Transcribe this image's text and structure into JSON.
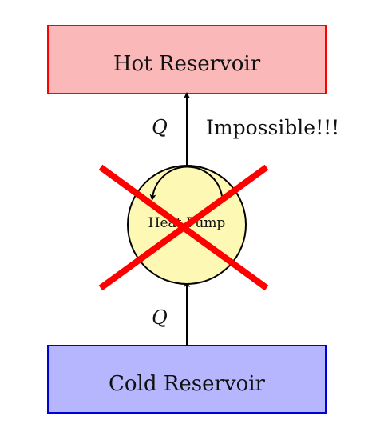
{
  "diagram": {
    "hot_reservoir": {
      "label": "Hot Reservoir",
      "fill": "#fbb8b8",
      "stroke": "#ff0000"
    },
    "cold_reservoir": {
      "label": "Cold Reservoir",
      "fill": "#b6b6ff",
      "stroke": "#0000d8"
    },
    "heat_pump": {
      "label": "Heat Pump",
      "fill": "#fdf8b4",
      "stroke": "#000000"
    },
    "upper_flow_label": "Q",
    "lower_flow_label": "Q",
    "status_text": "Impossible!!!",
    "cross_color": "#ff0000"
  }
}
